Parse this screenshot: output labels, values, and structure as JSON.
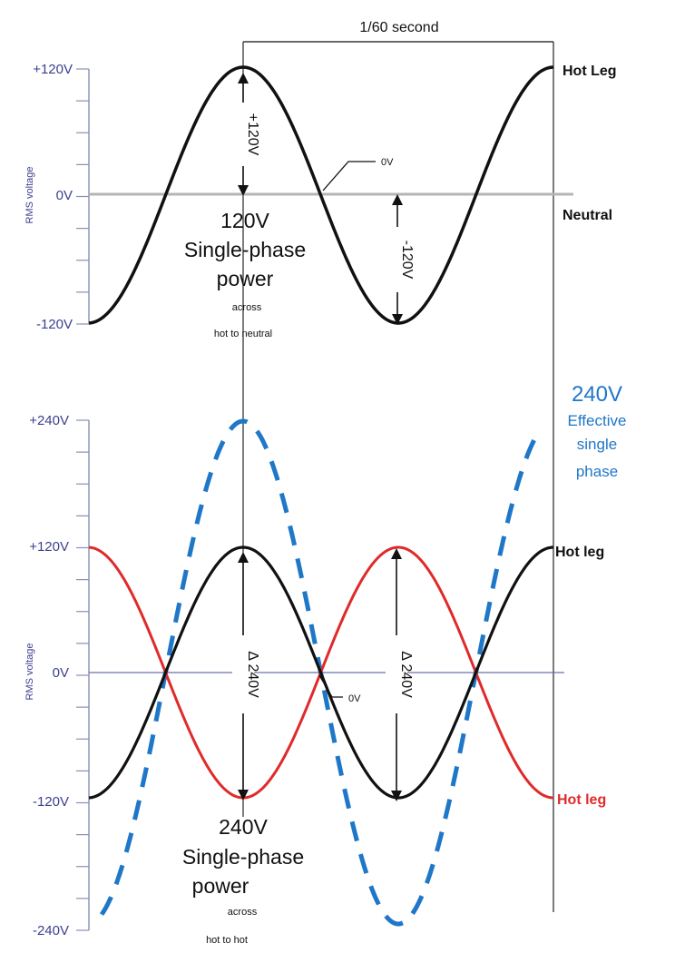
{
  "period_label": "1/60 second",
  "top": {
    "axis_label": "RMS voltage",
    "y_ticks": [
      "+120V",
      "0V",
      "-120V"
    ],
    "legend_hot": "Hot Leg",
    "legend_neutral": "Neutral",
    "arrow_pos": "+120V",
    "arrow_neg": "-120V",
    "zero_callout": "0V",
    "title_volts": "120V",
    "title_line2": "Single-phase",
    "title_line3": "power",
    "caption1": "across",
    "caption2": "hot to neutral"
  },
  "bottom": {
    "axis_label": "RMS voltage",
    "y_ticks": [
      "+240V",
      "+120V",
      "0V",
      "-120V",
      "-240V"
    ],
    "legend_hot_black": "Hot leg",
    "legend_hot_red": "Hot leg",
    "effective_volts": "240V",
    "effective_line1": "Effective",
    "effective_line2": "single",
    "effective_line3": "phase",
    "delta1": "Δ 240V",
    "delta2": "Δ 240V",
    "zero_callout": "0V",
    "title_volts": "240V",
    "title_line2": "Single-phase",
    "title_line3": "power",
    "caption1": "across",
    "caption2": "hot to hot"
  },
  "colors": {
    "hot_leg_black": "#111111",
    "hot_leg_red": "#e02a2a",
    "effective_blue": "#1f77c8",
    "axis": "#8a8fb5",
    "tick_label": "#3b3f8f"
  }
}
